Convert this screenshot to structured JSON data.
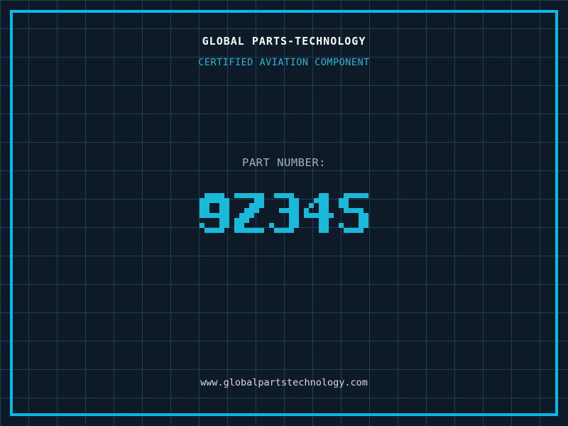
{
  "page": {
    "title": "GLOBAL PARTS-TECHNOLOGY",
    "subtitle": "CERTIFIED AVIATION COMPONENT",
    "part_label": "PART NUMBER:",
    "part_number": "9Z34S",
    "website": "www.globalpartstechnology.com"
  },
  "colors": {
    "background": "#0f1a28",
    "grid_line": "#1b4155",
    "frame": "#0db7e4",
    "title": "#f8fafb",
    "subtitle": "#2eb3d7",
    "part_label": "#a6aeb8",
    "part_number": "#1ab8d9",
    "website": "#d5dae0"
  }
}
